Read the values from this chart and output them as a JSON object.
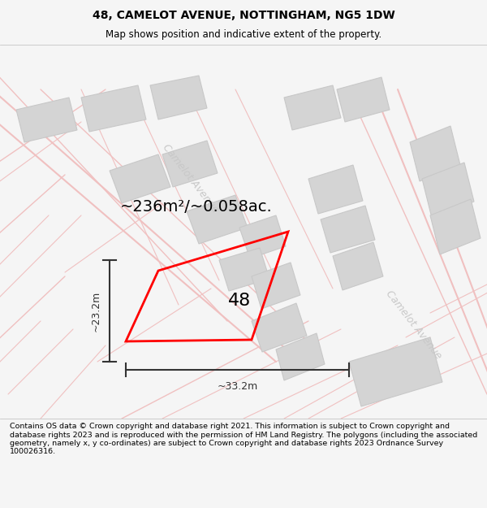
{
  "title": "48, CAMELOT AVENUE, NOTTINGHAM, NG5 1DW",
  "subtitle": "Map shows position and indicative extent of the property.",
  "area_label": "~236m²/~0.058ac.",
  "label_48": "48",
  "dim_width": "~33.2m",
  "dim_height": "~23.2m",
  "footer": "Contains OS data © Crown copyright and database right 2021. This information is subject to Crown copyright and database rights 2023 and is reproduced with the permission of HM Land Registry. The polygons (including the associated geometry, namely x, y co-ordinates) are subject to Crown copyright and database rights 2023 Ordnance Survey 100026316.",
  "bg_color": "#f5f5f5",
  "map_bg": "#ffffff",
  "road_color": "#f0c0c0",
  "building_color": "#d4d4d4",
  "building_edge": "#c8c8c8",
  "street_label_color": "#c8c8c8",
  "plot_color": "#ff0000",
  "dim_color": "#333333",
  "title_fontsize": 10,
  "subtitle_fontsize": 8.5,
  "footer_fontsize": 6.8,
  "area_fontsize": 14,
  "label_fontsize": 16,
  "dim_fontsize": 9,
  "street_fontsize": 9
}
